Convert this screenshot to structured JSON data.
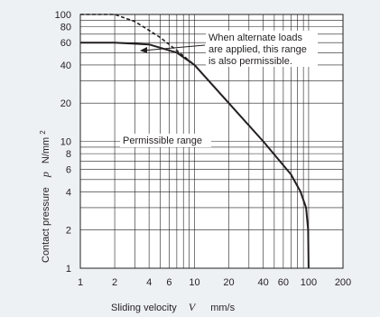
{
  "chart_data": {
    "type": "line",
    "x_scale": "log",
    "y_scale": "log",
    "xlim": [
      1,
      200
    ],
    "ylim": [
      1,
      100
    ],
    "x_ticks": [
      1,
      2,
      3,
      4,
      5,
      6,
      7,
      8,
      9,
      10,
      20,
      30,
      40,
      50,
      60,
      70,
      80,
      90,
      100,
      200
    ],
    "x_tick_labels": [
      "1",
      "2",
      "4",
      "6",
      "10",
      "20",
      "40",
      "60",
      "100",
      "200"
    ],
    "x_tick_label_values": [
      1,
      2,
      4,
      6,
      10,
      20,
      40,
      60,
      100,
      200
    ],
    "y_ticks": [
      1,
      2,
      3,
      4,
      5,
      6,
      7,
      8,
      9,
      10,
      20,
      30,
      40,
      50,
      60,
      70,
      80,
      90,
      100
    ],
    "y_tick_labels": [
      "1",
      "2",
      "4",
      "6",
      "8",
      "10",
      "20",
      "40",
      "60",
      "80",
      "100"
    ],
    "y_tick_label_values": [
      1,
      2,
      4,
      6,
      8,
      10,
      20,
      40,
      60,
      80,
      100
    ],
    "grid": true,
    "xlabel": {
      "text": "Sliding velocity",
      "symbol": "V",
      "unit": "mm/s"
    },
    "ylabel": {
      "text": "Contact pressure",
      "symbol": "p",
      "unit": "N/mm",
      "unit_superscript": "2"
    },
    "series": [
      {
        "style": "solid",
        "points": [
          [
            1,
            60
          ],
          [
            2,
            60
          ],
          [
            4,
            58
          ],
          [
            7,
            50
          ],
          [
            10,
            40
          ],
          [
            20,
            20
          ],
          [
            40,
            10
          ],
          [
            70,
            5.5
          ],
          [
            85,
            4
          ],
          [
            95,
            3
          ],
          [
            99,
            2
          ],
          [
            100,
            1
          ]
        ]
      },
      {
        "style": "dashed",
        "points": [
          [
            1,
            100
          ],
          [
            2,
            100
          ],
          [
            3,
            88
          ],
          [
            4,
            75
          ],
          [
            5,
            66
          ],
          [
            7,
            52
          ],
          [
            10,
            40
          ]
        ]
      }
    ],
    "annotations": [
      {
        "id": "alternate-loads-note",
        "lines": [
          "When alternate loads",
          "are applied, this range",
          "is also permissible."
        ]
      },
      {
        "id": "permissible-range-label",
        "lines": [
          "Permissible range"
        ]
      }
    ]
  }
}
